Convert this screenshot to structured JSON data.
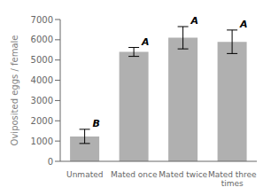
{
  "chart_data": {
    "type": "bar",
    "categories": [
      "Unmated",
      "Mated once",
      "Mated twice",
      "Mated three\ntimes"
    ],
    "values": [
      1230,
      5400,
      6100,
      5900
    ],
    "errors": [
      350,
      220,
      550,
      580
    ],
    "annotations": [
      "B",
      "A",
      "A",
      "A"
    ],
    "color": "#b0b0b0",
    "ylabel": "Oviposited eggs / female",
    "ylim": [
      0,
      7000
    ],
    "yticks": [
      0,
      1000,
      2000,
      3000,
      4000,
      5000,
      6000,
      7000
    ],
    "grid": false
  }
}
